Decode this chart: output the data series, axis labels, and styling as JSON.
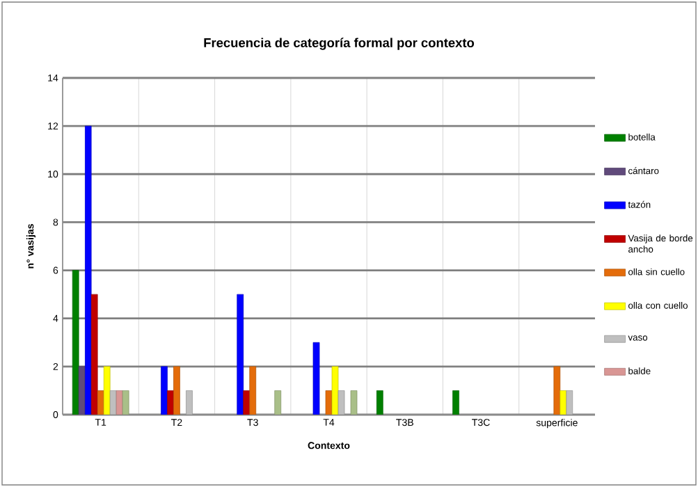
{
  "chart_data": {
    "type": "bar",
    "title": "Frecuencia de categoría formal por contexto",
    "xlabel": "Contexto",
    "ylabel": "n° vasijas",
    "categories": [
      "T1",
      "T2",
      "T3",
      "T4",
      "T3B",
      "T3C",
      "superficie"
    ],
    "series": [
      {
        "name": "botella",
        "color": "#008000",
        "values": [
          6,
          null,
          null,
          null,
          1,
          1,
          null
        ]
      },
      {
        "name": "cántaro",
        "color": "#604a7b",
        "values": [
          2,
          null,
          null,
          null,
          null,
          null,
          null
        ]
      },
      {
        "name": "tazón",
        "color": "#0000ff",
        "values": [
          12,
          2,
          5,
          3,
          null,
          null,
          null
        ]
      },
      {
        "name": "Vasija de borde ancho",
        "color": "#c00000",
        "values": [
          5,
          1,
          1,
          null,
          null,
          null,
          null
        ]
      },
      {
        "name": "olla sin cuello",
        "color": "#e46c0a",
        "values": [
          1,
          2,
          2,
          1,
          null,
          null,
          2
        ]
      },
      {
        "name": "olla con cuello",
        "color": "#ffff00",
        "values": [
          2,
          null,
          null,
          2,
          null,
          null,
          1
        ]
      },
      {
        "name": "vaso",
        "color": "#bfbfbf",
        "values": [
          1,
          1,
          null,
          1,
          null,
          null,
          1
        ]
      },
      {
        "name": "balde",
        "color": "#d99694",
        "values": [
          1,
          null,
          null,
          null,
          null,
          null,
          null
        ]
      },
      {
        "color": "#a9bf88",
        "values": [
          1,
          null,
          1,
          1,
          null,
          null,
          null
        ]
      }
    ],
    "ylim": [
      0,
      14
    ],
    "yticks": [
      0,
      2,
      4,
      6,
      8,
      10,
      12,
      14
    ],
    "grid": true,
    "legend": "right"
  }
}
